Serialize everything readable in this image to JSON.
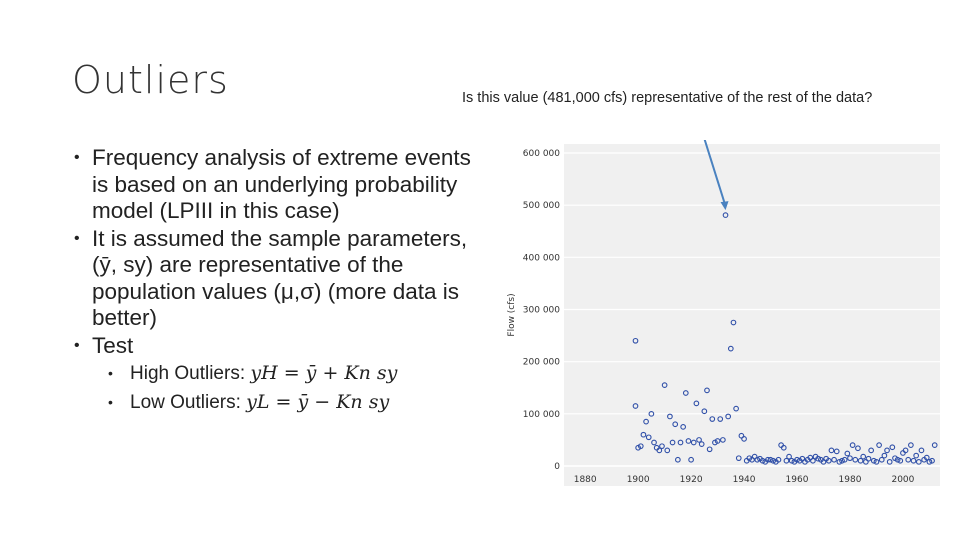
{
  "slide": {
    "title": "Outliers",
    "question": "Is this value (481,000 cfs) representative of the rest of the data?",
    "bullets": [
      "Frequency analysis of extreme events is based on an underlying probability model (LPIII in this case)",
      "It is assumed the sample parameters, (ȳ, sy) are representative of the population values (μ,σ) (more data is better)",
      "Test"
    ],
    "sub_bullets": [
      {
        "label": "High Outliers: ",
        "formula": "yH = ȳ + Kn sy"
      },
      {
        "label": "Low Outliers: ",
        "formula": "yL = ȳ − Kn sy"
      }
    ]
  },
  "chart_data": {
    "type": "scatter",
    "ylabel": "Flow (cfs)",
    "xlim": [
      1872,
      2014
    ],
    "ylim": [
      0,
      600000
    ],
    "x_ticks": [
      1880,
      1900,
      1920,
      1940,
      1960,
      1980,
      2000
    ],
    "y_ticks": [
      0,
      100000,
      200000,
      300000,
      400000,
      500000,
      600000
    ],
    "y_tick_labels": [
      "0",
      "100 000",
      "200 000",
      "300 000",
      "400 000",
      "500 000",
      "600 000"
    ],
    "marker_color": "#2f4fa8",
    "arrow_color": "#4a82c0",
    "annotated_point": [
      1933,
      481000
    ],
    "x": [
      1899,
      1899,
      1900,
      1901,
      1902,
      1903,
      1904,
      1905,
      1906,
      1907,
      1908,
      1909,
      1910,
      1911,
      1912,
      1913,
      1914,
      1915,
      1916,
      1917,
      1918,
      1919,
      1920,
      1921,
      1922,
      1923,
      1924,
      1925,
      1926,
      1927,
      1928,
      1929,
      1930,
      1931,
      1932,
      1933,
      1934,
      1935,
      1936,
      1937,
      1938,
      1939,
      1940,
      1941,
      1942,
      1943,
      1944,
      1945,
      1946,
      1947,
      1948,
      1949,
      1950,
      1951,
      1952,
      1953,
      1954,
      1955,
      1956,
      1957,
      1958,
      1959,
      1960,
      1961,
      1962,
      1963,
      1964,
      1965,
      1966,
      1967,
      1968,
      1969,
      1970,
      1971,
      1972,
      1973,
      1974,
      1975,
      1976,
      1977,
      1978,
      1979,
      1980,
      1981,
      1982,
      1983,
      1984,
      1985,
      1986,
      1987,
      1988,
      1989,
      1990,
      1991,
      1992,
      1993,
      1994,
      1995,
      1996,
      1997,
      1998,
      1999,
      2000,
      2001,
      2002,
      2003,
      2004,
      2005,
      2006,
      2007,
      2008,
      2009,
      2010,
      2011,
      2012
    ],
    "y": [
      240000,
      115000,
      35000,
      38000,
      60000,
      85000,
      55000,
      100000,
      45000,
      35000,
      30000,
      38000,
      155000,
      30000,
      95000,
      45000,
      80000,
      12000,
      45000,
      75000,
      140000,
      48000,
      12000,
      45000,
      120000,
      50000,
      42000,
      105000,
      145000,
      32000,
      90000,
      45000,
      48000,
      90000,
      50000,
      481000,
      95000,
      225000,
      275000,
      110000,
      15000,
      58000,
      52000,
      10000,
      15000,
      12000,
      18000,
      12000,
      14000,
      10000,
      8000,
      12000,
      12000,
      10000,
      8000,
      12000,
      40000,
      35000,
      10000,
      18000,
      10000,
      8000,
      12000,
      10000,
      14000,
      8000,
      12000,
      16000,
      10000,
      18000,
      14000,
      12000,
      8000,
      14000,
      10000,
      30000,
      12000,
      28000,
      8000,
      10000,
      12000,
      24000,
      15000,
      40000,
      12000,
      34000,
      10000,
      18000,
      8000,
      14000,
      30000,
      10000,
      8000,
      40000,
      12000,
      20000,
      30000,
      8000,
      36000,
      15000,
      12000,
      10000,
      25000,
      30000,
      12000,
      40000,
      10000,
      20000,
      8000,
      30000,
      12000,
      16000,
      8000,
      10000,
      40000
    ]
  }
}
